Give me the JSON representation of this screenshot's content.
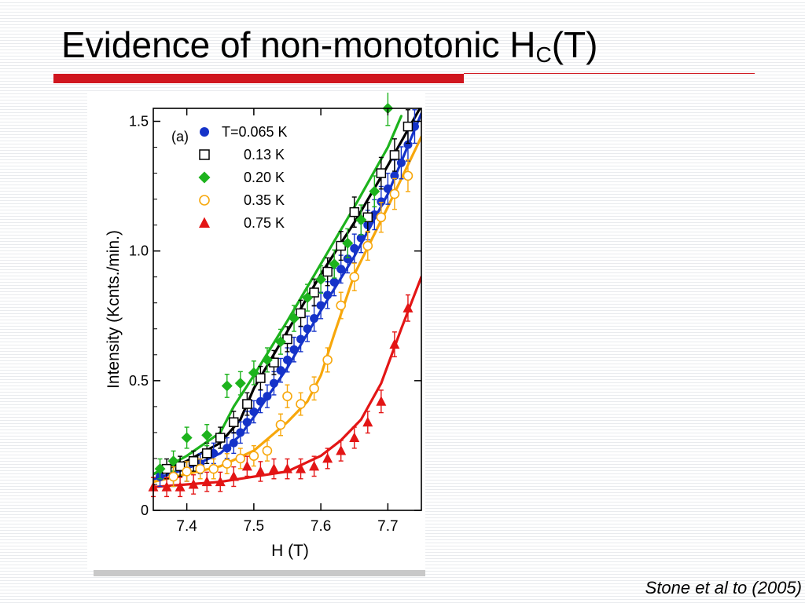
{
  "slide": {
    "title_main": "Evidence of non-monotonic H",
    "title_sub": "C",
    "title_tail": "(T)",
    "citation": "Stone et al to (2005)"
  },
  "chart_data": {
    "type": "scatter",
    "panel_label": "(a)",
    "xlabel": "H (T)",
    "ylabel": "Intensity (Kcnts./min.)",
    "xlim": [
      7.35,
      7.75
    ],
    "ylim": [
      0,
      1.55
    ],
    "x_ticks": [
      7.4,
      7.5,
      7.6,
      7.7
    ],
    "y_ticks": [
      0,
      0.5,
      1.0,
      1.5
    ],
    "y_tick_labels": [
      "0",
      "0.5",
      "1.0",
      "1.5"
    ],
    "legend_position": "top-left",
    "grid": false,
    "series": [
      {
        "name": "T=0.065 K",
        "marker": "filled-circle",
        "color": "#1533c9",
        "x": [
          7.36,
          7.38,
          7.4,
          7.42,
          7.44,
          7.46,
          7.47,
          7.48,
          7.49,
          7.5,
          7.51,
          7.52,
          7.53,
          7.54,
          7.55,
          7.56,
          7.57,
          7.58,
          7.59,
          7.6,
          7.61,
          7.62,
          7.63,
          7.64,
          7.65,
          7.66,
          7.67,
          7.68,
          7.69,
          7.7,
          7.71,
          7.72,
          7.73,
          7.74
        ],
        "y": [
          0.13,
          0.13,
          0.15,
          0.18,
          0.22,
          0.24,
          0.26,
          0.3,
          0.34,
          0.38,
          0.42,
          0.44,
          0.49,
          0.54,
          0.58,
          0.62,
          0.66,
          0.7,
          0.74,
          0.79,
          0.83,
          0.88,
          0.93,
          0.97,
          1.01,
          1.05,
          1.1,
          1.14,
          1.19,
          1.24,
          1.29,
          1.34,
          1.41,
          1.48
        ],
        "fit_x": [
          7.35,
          7.4,
          7.45,
          7.48,
          7.5,
          7.55,
          7.6,
          7.65,
          7.7,
          7.75
        ],
        "fit_y": [
          0.12,
          0.16,
          0.22,
          0.29,
          0.36,
          0.55,
          0.77,
          0.98,
          1.22,
          1.53
        ]
      },
      {
        "name": "0.13 K",
        "marker": "open-square",
        "color": "#000000",
        "x": [
          7.37,
          7.39,
          7.41,
          7.43,
          7.45,
          7.47,
          7.49,
          7.51,
          7.53,
          7.55,
          7.57,
          7.59,
          7.61,
          7.63,
          7.65,
          7.67,
          7.69,
          7.71,
          7.73
        ],
        "y": [
          0.16,
          0.17,
          0.19,
          0.22,
          0.28,
          0.34,
          0.41,
          0.51,
          0.57,
          0.66,
          0.76,
          0.84,
          0.92,
          1.02,
          1.15,
          1.13,
          1.3,
          1.37,
          1.48
        ],
        "fit_x": [
          7.35,
          7.4,
          7.45,
          7.48,
          7.5,
          7.55,
          7.6,
          7.65,
          7.7,
          7.75
        ],
        "fit_y": [
          0.14,
          0.19,
          0.26,
          0.35,
          0.47,
          0.69,
          0.91,
          1.11,
          1.33,
          1.56
        ]
      },
      {
        "name": "0.20 K",
        "marker": "filled-diamond",
        "color": "#1db31d",
        "x": [
          7.36,
          7.38,
          7.4,
          7.43,
          7.46,
          7.48,
          7.5,
          7.52,
          7.54,
          7.56,
          7.58,
          7.6,
          7.62,
          7.64,
          7.66,
          7.68,
          7.7
        ],
        "y": [
          0.16,
          0.19,
          0.28,
          0.29,
          0.48,
          0.49,
          0.53,
          0.58,
          0.65,
          0.74,
          0.82,
          0.89,
          0.95,
          1.03,
          1.12,
          1.23,
          1.55
        ],
        "fit_x": [
          7.35,
          7.4,
          7.45,
          7.47,
          7.5,
          7.55,
          7.6,
          7.65,
          7.7,
          7.72
        ],
        "fit_y": [
          0.14,
          0.21,
          0.3,
          0.4,
          0.52,
          0.73,
          0.95,
          1.17,
          1.4,
          1.52
        ]
      },
      {
        "name": "0.35 K",
        "marker": "open-circle",
        "color": "#f7a70b",
        "x": [
          7.38,
          7.4,
          7.42,
          7.44,
          7.46,
          7.48,
          7.5,
          7.52,
          7.54,
          7.55,
          7.57,
          7.59,
          7.61,
          7.63,
          7.65,
          7.67,
          7.69,
          7.71,
          7.73
        ],
        "y": [
          0.13,
          0.15,
          0.16,
          0.16,
          0.18,
          0.2,
          0.21,
          0.23,
          0.33,
          0.44,
          0.41,
          0.47,
          0.58,
          0.79,
          0.9,
          1.02,
          1.13,
          1.22,
          1.29
        ],
        "fit_x": [
          7.35,
          7.4,
          7.45,
          7.5,
          7.55,
          7.58,
          7.6,
          7.62,
          7.65,
          7.7,
          7.75
        ],
        "fit_y": [
          0.11,
          0.14,
          0.17,
          0.23,
          0.34,
          0.42,
          0.52,
          0.68,
          0.91,
          1.17,
          1.44
        ]
      },
      {
        "name": "0.75 K",
        "marker": "filled-triangle",
        "color": "#e31515",
        "x": [
          7.35,
          7.37,
          7.39,
          7.41,
          7.43,
          7.45,
          7.47,
          7.49,
          7.51,
          7.53,
          7.55,
          7.57,
          7.59,
          7.61,
          7.63,
          7.65,
          7.67,
          7.69,
          7.71,
          7.73
        ],
        "y": [
          0.09,
          0.09,
          0.09,
          0.1,
          0.11,
          0.11,
          0.13,
          0.17,
          0.15,
          0.16,
          0.16,
          0.16,
          0.17,
          0.2,
          0.23,
          0.28,
          0.34,
          0.42,
          0.64,
          0.78
        ],
        "fit_x": [
          7.35,
          7.4,
          7.45,
          7.5,
          7.55,
          7.6,
          7.63,
          7.66,
          7.69,
          7.72,
          7.75
        ],
        "fit_y": [
          0.09,
          0.1,
          0.11,
          0.13,
          0.15,
          0.21,
          0.27,
          0.35,
          0.49,
          0.7,
          0.9
        ]
      }
    ]
  }
}
